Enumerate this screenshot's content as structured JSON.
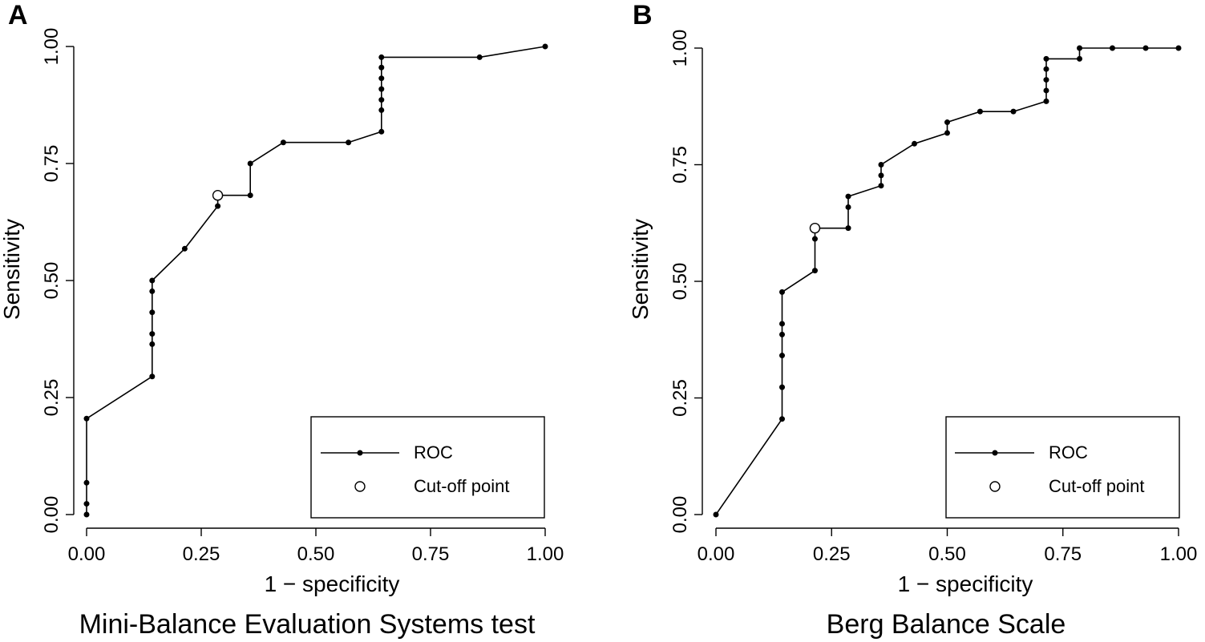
{
  "chart_data": [
    {
      "type": "line",
      "panel_letter": "A",
      "subtitle": "Mini-Balance Evaluation Systems test",
      "xlabel": "1 − specificity",
      "ylabel": "Sensitivity",
      "xlim": [
        0,
        1
      ],
      "ylim": [
        0,
        1
      ],
      "xticks": [
        "0.00",
        "0.25",
        "0.50",
        "0.75",
        "1.00"
      ],
      "yticks": [
        "0.00",
        "0.25",
        "0.50",
        "0.75",
        "1.00"
      ],
      "series": [
        {
          "name": "ROC",
          "points": [
            [
              0.0,
              0.0
            ],
            [
              0.0,
              0.023
            ],
            [
              0.0,
              0.068
            ],
            [
              0.0,
              0.205
            ],
            [
              0.143,
              0.295
            ],
            [
              0.143,
              0.364
            ],
            [
              0.143,
              0.386
            ],
            [
              0.143,
              0.432
            ],
            [
              0.143,
              0.477
            ],
            [
              0.143,
              0.5
            ],
            [
              0.214,
              0.568
            ],
            [
              0.286,
              0.659
            ],
            [
              0.286,
              0.682
            ],
            [
              0.357,
              0.682
            ],
            [
              0.357,
              0.75
            ],
            [
              0.429,
              0.795
            ],
            [
              0.571,
              0.795
            ],
            [
              0.643,
              0.818
            ],
            [
              0.643,
              0.864
            ],
            [
              0.643,
              0.886
            ],
            [
              0.643,
              0.909
            ],
            [
              0.643,
              0.932
            ],
            [
              0.643,
              0.955
            ],
            [
              0.643,
              0.977
            ],
            [
              0.857,
              0.977
            ],
            [
              1.0,
              1.0
            ]
          ],
          "markers": [
            [
              0.0,
              0.0
            ],
            [
              0.0,
              0.023
            ],
            [
              0.0,
              0.068
            ],
            [
              0.0,
              0.205
            ],
            [
              0.143,
              0.295
            ],
            [
              0.143,
              0.364
            ],
            [
              0.143,
              0.386
            ],
            [
              0.143,
              0.432
            ],
            [
              0.143,
              0.477
            ],
            [
              0.143,
              0.5
            ],
            [
              0.214,
              0.568
            ],
            [
              0.286,
              0.659
            ],
            [
              0.357,
              0.682
            ],
            [
              0.357,
              0.75
            ],
            [
              0.429,
              0.795
            ],
            [
              0.571,
              0.795
            ],
            [
              0.643,
              0.818
            ],
            [
              0.643,
              0.864
            ],
            [
              0.643,
              0.886
            ],
            [
              0.643,
              0.909
            ],
            [
              0.643,
              0.932
            ],
            [
              0.643,
              0.955
            ],
            [
              0.643,
              0.977
            ],
            [
              0.857,
              0.977
            ],
            [
              1.0,
              1.0
            ]
          ]
        }
      ],
      "cutoff_point": [
        0.286,
        0.682
      ],
      "legend": {
        "roc_label": "ROC",
        "cutoff_label": "Cut-off point",
        "position": "bottom-right"
      }
    },
    {
      "type": "line",
      "panel_letter": "B",
      "subtitle": "Berg Balance Scale",
      "xlabel": "1 − specificity",
      "ylabel": "Sensitivity",
      "xlim": [
        0,
        1
      ],
      "ylim": [
        0,
        1
      ],
      "xticks": [
        "0.00",
        "0.25",
        "0.50",
        "0.75",
        "1.00"
      ],
      "yticks": [
        "0.00",
        "0.25",
        "0.50",
        "0.75",
        "1.00"
      ],
      "series": [
        {
          "name": "ROC",
          "points": [
            [
              0.0,
              0.0
            ],
            [
              0.143,
              0.205
            ],
            [
              0.143,
              0.273
            ],
            [
              0.143,
              0.341
            ],
            [
              0.143,
              0.386
            ],
            [
              0.143,
              0.409
            ],
            [
              0.143,
              0.477
            ],
            [
              0.214,
              0.523
            ],
            [
              0.214,
              0.591
            ],
            [
              0.214,
              0.614
            ],
            [
              0.286,
              0.614
            ],
            [
              0.286,
              0.659
            ],
            [
              0.286,
              0.682
            ],
            [
              0.357,
              0.705
            ],
            [
              0.357,
              0.727
            ],
            [
              0.357,
              0.75
            ],
            [
              0.429,
              0.795
            ],
            [
              0.5,
              0.818
            ],
            [
              0.5,
              0.841
            ],
            [
              0.571,
              0.864
            ],
            [
              0.643,
              0.864
            ],
            [
              0.714,
              0.886
            ],
            [
              0.714,
              0.909
            ],
            [
              0.714,
              0.932
            ],
            [
              0.714,
              0.955
            ],
            [
              0.714,
              0.977
            ],
            [
              0.786,
              0.977
            ],
            [
              0.786,
              1.0
            ],
            [
              0.857,
              1.0
            ],
            [
              0.929,
              1.0
            ],
            [
              1.0,
              1.0
            ]
          ],
          "markers": [
            [
              0.0,
              0.0
            ],
            [
              0.143,
              0.205
            ],
            [
              0.143,
              0.273
            ],
            [
              0.143,
              0.341
            ],
            [
              0.143,
              0.386
            ],
            [
              0.143,
              0.409
            ],
            [
              0.143,
              0.477
            ],
            [
              0.214,
              0.523
            ],
            [
              0.214,
              0.591
            ],
            [
              0.286,
              0.614
            ],
            [
              0.286,
              0.659
            ],
            [
              0.286,
              0.682
            ],
            [
              0.357,
              0.705
            ],
            [
              0.357,
              0.727
            ],
            [
              0.357,
              0.75
            ],
            [
              0.429,
              0.795
            ],
            [
              0.5,
              0.818
            ],
            [
              0.5,
              0.841
            ],
            [
              0.571,
              0.864
            ],
            [
              0.643,
              0.864
            ],
            [
              0.714,
              0.886
            ],
            [
              0.714,
              0.909
            ],
            [
              0.714,
              0.932
            ],
            [
              0.714,
              0.955
            ],
            [
              0.714,
              0.977
            ],
            [
              0.786,
              0.977
            ],
            [
              0.786,
              1.0
            ],
            [
              0.857,
              1.0
            ],
            [
              0.929,
              1.0
            ],
            [
              1.0,
              1.0
            ]
          ]
        }
      ],
      "cutoff_point": [
        0.214,
        0.614
      ],
      "legend": {
        "roc_label": "ROC",
        "cutoff_label": "Cut-off point",
        "position": "bottom-right"
      }
    }
  ]
}
